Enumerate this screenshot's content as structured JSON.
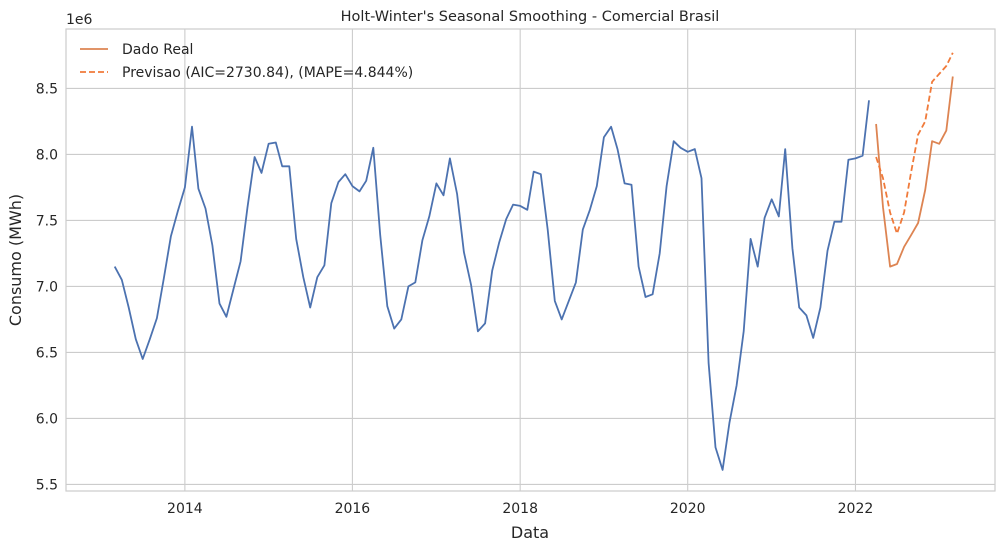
{
  "chart_data": {
    "type": "line",
    "title": "Holt-Winter's Seasonal Smoothing - Comercial Brasil",
    "xlabel": "Data",
    "ylabel": "Consumo (MWh)",
    "y_offset_label": "1e6",
    "y_scale": 1000000,
    "xlim": [
      "2012-08-01",
      "2023-09-01"
    ],
    "ylim": [
      5450000,
      8950000
    ],
    "x_ticks": [
      "2014",
      "2016",
      "2018",
      "2020",
      "2022"
    ],
    "y_ticks": [
      "5.5",
      "6.0",
      "6.5",
      "7.0",
      "7.5",
      "8.0",
      "8.5"
    ],
    "grid": true,
    "legend_position": "top-left",
    "colors": {
      "history": "#4c72b0",
      "real": "#dd8452",
      "forecast": "#f07a3a"
    },
    "series": [
      {
        "legend": false,
        "style": "solid",
        "color_key": "history",
        "x": [
          "2013-03",
          "2013-04",
          "2013-05",
          "2013-06",
          "2013-07",
          "2013-08",
          "2013-09",
          "2013-10",
          "2013-11",
          "2013-12",
          "2014-01",
          "2014-02",
          "2014-03",
          "2014-04",
          "2014-05",
          "2014-06",
          "2014-07",
          "2014-08",
          "2014-09",
          "2014-10",
          "2014-11",
          "2014-12",
          "2015-01",
          "2015-02",
          "2015-03",
          "2015-04",
          "2015-05",
          "2015-06",
          "2015-07",
          "2015-08",
          "2015-09",
          "2015-10",
          "2015-11",
          "2015-12",
          "2016-01",
          "2016-02",
          "2016-03",
          "2016-04",
          "2016-05",
          "2016-06",
          "2016-07",
          "2016-08",
          "2016-09",
          "2016-10",
          "2016-11",
          "2016-12",
          "2017-01",
          "2017-02",
          "2017-03",
          "2017-04",
          "2017-05",
          "2017-06",
          "2017-07",
          "2017-08",
          "2017-09",
          "2017-10",
          "2017-11",
          "2017-12",
          "2018-01",
          "2018-02",
          "2018-03",
          "2018-04",
          "2018-05",
          "2018-06",
          "2018-07",
          "2018-08",
          "2018-09",
          "2018-10",
          "2018-11",
          "2018-12",
          "2019-01",
          "2019-02",
          "2019-03",
          "2019-04",
          "2019-05",
          "2019-06",
          "2019-07",
          "2019-08",
          "2019-09",
          "2019-10",
          "2019-11",
          "2019-12",
          "2020-01",
          "2020-02",
          "2020-03",
          "2020-04",
          "2020-05",
          "2020-06",
          "2020-07",
          "2020-08",
          "2020-09",
          "2020-10",
          "2020-11",
          "2020-12",
          "2021-01",
          "2021-02",
          "2021-03",
          "2021-04",
          "2021-05",
          "2021-06",
          "2021-07",
          "2021-08",
          "2021-09",
          "2021-10",
          "2021-11",
          "2021-12",
          "2022-01",
          "2022-02",
          "2022-03"
        ],
        "values": [
          7150000,
          7050000,
          6840000,
          6600000,
          6450000,
          6600000,
          6760000,
          7060000,
          7380000,
          7570000,
          7750000,
          8210000,
          7740000,
          7590000,
          7310000,
          6870000,
          6770000,
          6980000,
          7190000,
          7600000,
          7980000,
          7860000,
          8080000,
          8090000,
          7910000,
          7910000,
          7360000,
          7070000,
          6840000,
          7070000,
          7160000,
          7630000,
          7790000,
          7850000,
          7760000,
          7720000,
          7800000,
          8050000,
          7390000,
          6850000,
          6680000,
          6750000,
          7000000,
          7030000,
          7350000,
          7530000,
          7780000,
          7690000,
          7970000,
          7700000,
          7260000,
          7010000,
          6660000,
          6720000,
          7120000,
          7330000,
          7510000,
          7620000,
          7610000,
          7580000,
          7870000,
          7850000,
          7430000,
          6890000,
          6750000,
          6890000,
          7030000,
          7430000,
          7580000,
          7760000,
          8130000,
          8210000,
          8040000,
          7780000,
          7770000,
          7150000,
          6920000,
          6940000,
          7250000,
          7760000,
          8100000,
          8050000,
          8020000,
          8040000,
          7820000,
          6420000,
          5780000,
          5610000,
          5970000,
          6250000,
          6660000,
          7360000,
          7150000,
          7520000,
          7660000,
          7530000,
          8040000,
          7290000,
          6840000,
          6780000,
          6610000,
          6840000,
          7270000,
          7490000,
          7490000,
          7960000,
          7970000,
          7990000,
          8410000
        ]
      },
      {
        "name": "Dado Real",
        "style": "solid",
        "color_key": "real",
        "x": [
          "2022-04",
          "2022-05",
          "2022-06",
          "2022-07",
          "2022-08",
          "2022-09",
          "2022-10",
          "2022-11",
          "2022-12",
          "2023-01",
          "2023-02",
          "2023-03"
        ],
        "values": [
          8230000,
          7600000,
          7150000,
          7170000,
          7300000,
          7390000,
          7480000,
          7730000,
          8100000,
          8080000,
          8180000,
          8590000
        ]
      },
      {
        "name": "Previsao (AIC=2730.84), (MAPE=4.844%)",
        "style": "dashed",
        "color_key": "forecast",
        "x": [
          "2022-04",
          "2022-05",
          "2022-06",
          "2022-07",
          "2022-08",
          "2022-09",
          "2022-10",
          "2022-11",
          "2022-12",
          "2023-01",
          "2023-02",
          "2023-03"
        ],
        "values": [
          7980000,
          7820000,
          7560000,
          7400000,
          7560000,
          7870000,
          8150000,
          8250000,
          8550000,
          8610000,
          8670000,
          8770000
        ]
      }
    ]
  }
}
